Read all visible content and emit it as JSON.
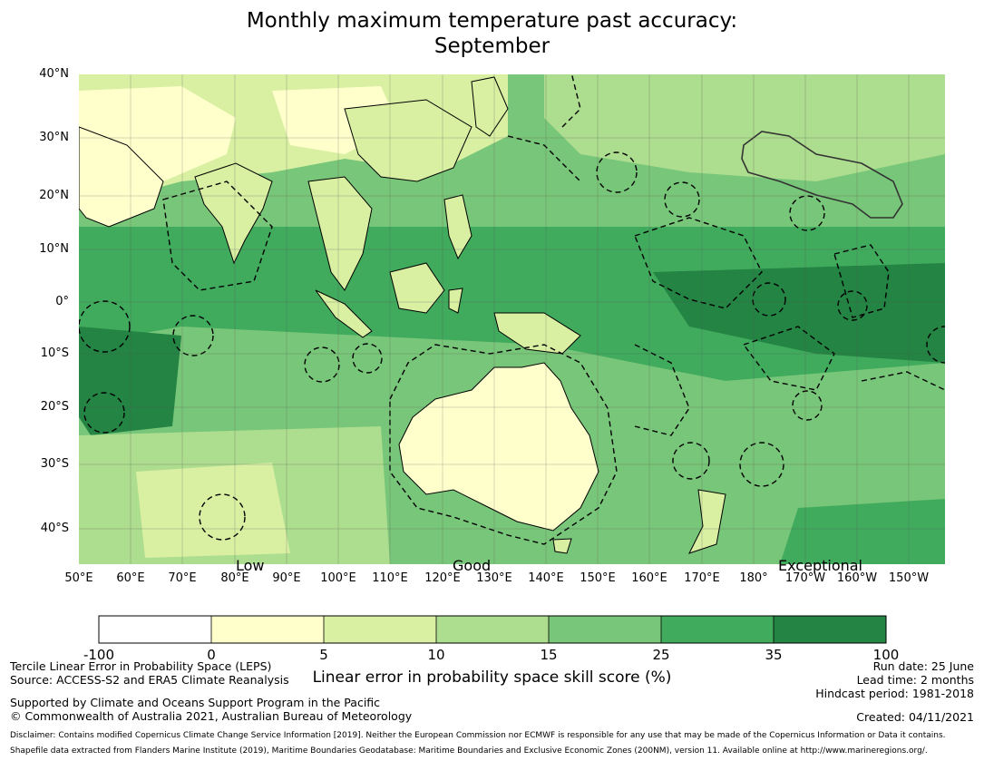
{
  "title_line1": "Monthly maximum temperature past accuracy:",
  "title_line2": "September",
  "lat_labels": [
    "40°N",
    "30°N",
    "20°N",
    "10°N",
    "0°",
    "10°S",
    "20°S",
    "30°S",
    "40°S"
  ],
  "lon_labels": [
    "50°E",
    "60°E",
    "70°E",
    "80°E",
    "90°E",
    "100°E",
    "110°E",
    "120°E",
    "130°E",
    "140°E",
    "150°E",
    "160°E",
    "170°E",
    "180°",
    "170°W",
    "160°W",
    "150°W"
  ],
  "skill_labels": {
    "low": "Low",
    "good": "Good",
    "exceptional": "Exceptional"
  },
  "colorbar": {
    "ticks": [
      "-100",
      "0",
      "5",
      "10",
      "15",
      "25",
      "35",
      "100"
    ],
    "colors": [
      "#ffffff",
      "#ffffcc",
      "#d9f0a3",
      "#addd8e",
      "#78c679",
      "#41ab5d",
      "#238443"
    ],
    "label": "Linear error in probability space skill score (%)"
  },
  "footer": {
    "method": "Tercile Linear Error in Probability Space (LEPS)",
    "source": "Source: ACCESS-S2 and ERA5 Climate Reanalysis",
    "support": "Supported by Climate and Oceans Support Program in the Pacific",
    "copyright": "© Commonwealth of Australia 2021, Australian Bureau of Meteorology",
    "run_date": "Run date: 25 June",
    "lead_time": "Lead time: 2 months",
    "hindcast": "Hindcast period: 1981-2018",
    "created": "Created: 04/11/2021",
    "disclaimer": "Disclaimer: Contains modified Copernicus Climate Change Service Information [2019]. Neither the European Commission nor ECMWF is responsible for any use that may be made of the Copernicus Information or Data it contains.",
    "shapefile": "Shapefile data extracted from Flanders Marine Institute (2019), Maritime Boundaries Geodatabase: Maritime Boundaries and Exclusive Economic Zones (200NM), version 11. Available online at http://www.marineregions.org/."
  }
}
